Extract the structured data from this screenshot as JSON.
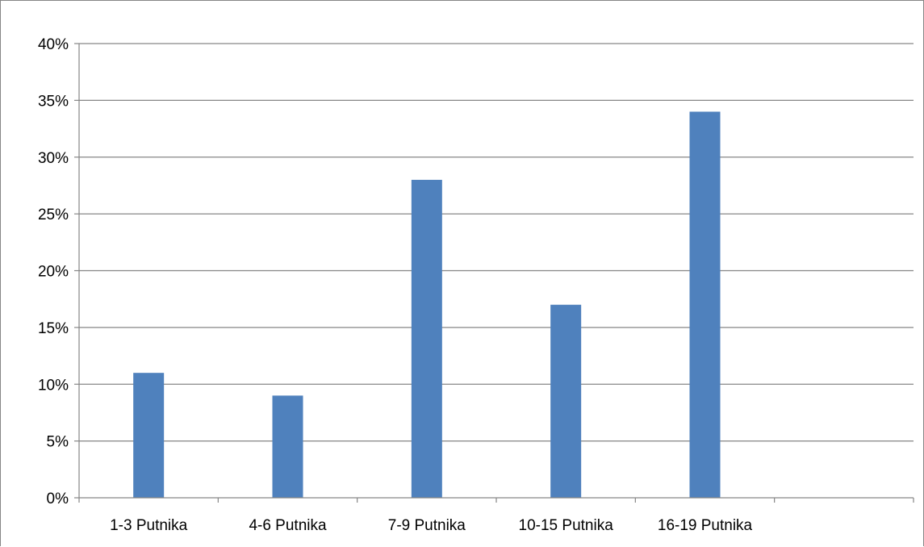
{
  "chart_data": {
    "type": "bar",
    "title": "",
    "xlabel": "",
    "ylabel": "",
    "categories": [
      "1-3 Putnika",
      "4-6 Putnika",
      "7-9 Putnika",
      "10-15 Putnika",
      "16-19 Putnika",
      ""
    ],
    "values": [
      11,
      9,
      28,
      17,
      34,
      null
    ],
    "value_format": "percent",
    "ylim": [
      0,
      40
    ],
    "y_ticks": [
      0,
      5,
      10,
      15,
      20,
      25,
      30,
      35,
      40
    ],
    "y_tick_labels": [
      "0%",
      "5%",
      "10%",
      "15%",
      "20%",
      "25%",
      "30%",
      "35%",
      "40%"
    ],
    "grid": "horizontal",
    "legend": "none",
    "bar_color": "#4F81BD",
    "grid_color": "#868686"
  }
}
